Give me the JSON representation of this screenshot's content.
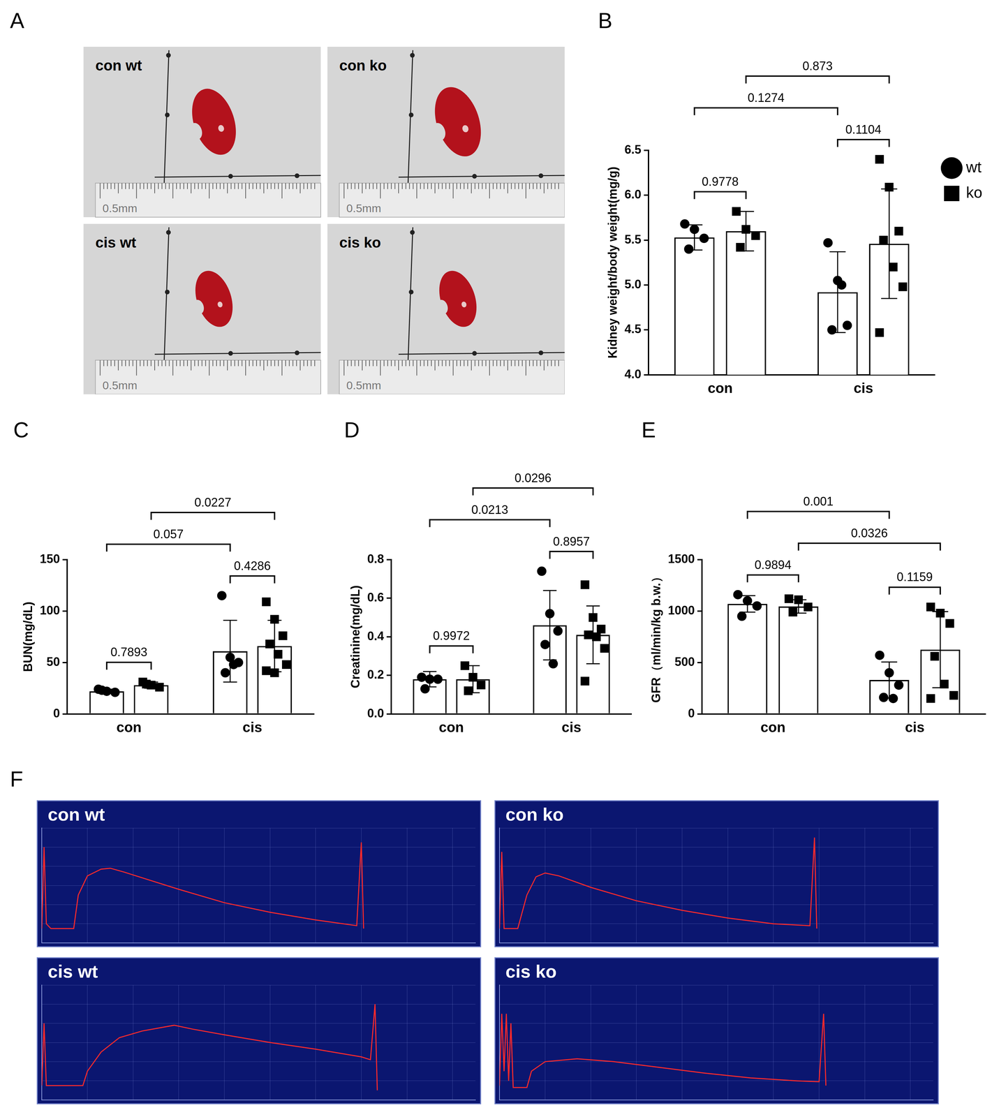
{
  "photos": {
    "panel": "A",
    "images": [
      {
        "label": "con wt"
      },
      {
        "label": "con ko"
      },
      {
        "label": "cis wt"
      },
      {
        "label": "cis ko"
      }
    ],
    "ruler_label": "0.5mm"
  },
  "chart_data": [
    {
      "panel": "B",
      "type": "bar",
      "y_label": "Kidney weight/body weight(mg/g)",
      "categories": [
        "con",
        "cis"
      ],
      "series": [
        {
          "name": "wt",
          "color": "#000000",
          "marker": "circle",
          "values": [
            5.53,
            4.92
          ],
          "error": [
            0.14,
            0.45
          ],
          "points": [
            [
              5.68,
              5.62,
              5.52,
              5.4
            ],
            [
              5.47,
              5.05,
              4.55,
              4.5,
              5.0
            ]
          ]
        },
        {
          "name": "ko",
          "color": "#000000",
          "marker": "square",
          "values": [
            5.6,
            5.46
          ],
          "error": [
            0.22,
            0.61
          ],
          "points": [
            [
              5.82,
              5.62,
              5.55,
              5.42
            ],
            [
              6.4,
              6.09,
              5.6,
              5.5,
              5.2,
              4.98,
              4.47
            ]
          ]
        }
      ],
      "ylim": [
        4,
        6.5
      ],
      "yticks": [
        {
          "value": 4,
          "label": "4.0"
        },
        {
          "value": 4.5,
          "label": "4.5"
        },
        {
          "value": 5,
          "label": "5.0"
        },
        {
          "value": 5.5,
          "label": "5.5"
        },
        {
          "value": 6,
          "label": "6.0"
        },
        {
          "value": 6.5,
          "label": "6.5"
        }
      ],
      "legend": "right",
      "comparisons": [
        {
          "between": [
            [
              0,
              0
            ],
            [
              0,
              1
            ]
          ],
          "label": "0.9778"
        },
        {
          "between": [
            [
              1,
              0
            ],
            [
              1,
              1
            ]
          ],
          "label": "0.1104"
        },
        {
          "between": [
            [
              0,
              0
            ],
            [
              1,
              0
            ]
          ],
          "label": "0.1274"
        },
        {
          "between": [
            [
              0,
              1
            ],
            [
              1,
              1
            ]
          ],
          "label": "0.873"
        }
      ]
    },
    {
      "panel": "C",
      "type": "bar",
      "y_label": "BUN(mg/dL)",
      "categories": [
        "con",
        "cis"
      ],
      "series": [
        {
          "name": "wt",
          "color": "#000000",
          "marker": "circle",
          "values": [
            22,
            61
          ],
          "error": [
            2,
            30
          ],
          "points": [
            [
              24,
              22,
              21,
              23
            ],
            [
              115,
              55,
              50,
              40,
              48
            ]
          ]
        },
        {
          "name": "ko",
          "color": "#000000",
          "marker": "square",
          "values": [
            28,
            66
          ],
          "error": [
            3,
            25
          ],
          "points": [
            [
              31,
              28,
              26,
              29
            ],
            [
              109,
              92,
              76,
              68,
              58,
              48,
              42,
              40
            ]
          ]
        }
      ],
      "ylim": [
        0,
        150
      ],
      "yticks": [
        0,
        50,
        100,
        150
      ],
      "comparisons": [
        {
          "between": [
            [
              0,
              0
            ],
            [
              0,
              1
            ]
          ],
          "label": "0.7893"
        },
        {
          "between": [
            [
              1,
              0
            ],
            [
              1,
              1
            ]
          ],
          "label": "0.4286"
        },
        {
          "between": [
            [
              0,
              0
            ],
            [
              1,
              0
            ]
          ],
          "label": "0.057"
        },
        {
          "between": [
            [
              0,
              1
            ],
            [
              1,
              1
            ]
          ],
          "label": "0.0227"
        }
      ]
    },
    {
      "panel": "D",
      "type": "bar",
      "y_label": "Creatinine(mg/dL)",
      "categories": [
        "con",
        "cis"
      ],
      "series": [
        {
          "name": "wt",
          "color": "#000000",
          "marker": "circle",
          "values": [
            0.18,
            0.46
          ],
          "error": [
            0.04,
            0.18
          ],
          "points": [
            [
              0.19,
              0.18,
              0.18,
              0.13
            ],
            [
              0.74,
              0.52,
              0.43,
              0.36,
              0.26
            ]
          ]
        },
        {
          "name": "ko",
          "color": "#000000",
          "marker": "square",
          "values": [
            0.18,
            0.41
          ],
          "error": [
            0.07,
            0.15
          ],
          "points": [
            [
              0.25,
              0.19,
              0.15,
              0.12
            ],
            [
              0.67,
              0.5,
              0.44,
              0.41,
              0.4,
              0.34,
              0.17
            ]
          ]
        }
      ],
      "ylim": [
        0,
        0.8
      ],
      "yticks": [
        {
          "value": 0,
          "label": "0.0"
        },
        {
          "value": 0.2,
          "label": "0.2"
        },
        {
          "value": 0.4,
          "label": "0.4"
        },
        {
          "value": 0.6,
          "label": "0.6"
        },
        {
          "value": 0.8,
          "label": "0.8"
        }
      ],
      "comparisons": [
        {
          "between": [
            [
              0,
              0
            ],
            [
              0,
              1
            ]
          ],
          "label": "0.9972"
        },
        {
          "between": [
            [
              1,
              0
            ],
            [
              1,
              1
            ]
          ],
          "label": "0.8957"
        },
        {
          "between": [
            [
              0,
              0
            ],
            [
              1,
              0
            ]
          ],
          "label": "0.0213"
        },
        {
          "between": [
            [
              0,
              1
            ],
            [
              1,
              1
            ]
          ],
          "label": "0.0296"
        }
      ]
    },
    {
      "panel": "E",
      "type": "bar",
      "y_label": "GFR（ml/min/kg b.w.）",
      "categories": [
        "con",
        "cis"
      ],
      "series": [
        {
          "name": "wt",
          "color": "#000000",
          "marker": "circle",
          "values": [
            1070,
            330
          ],
          "error": [
            80,
            175
          ],
          "points": [
            [
              1160,
              1100,
              1050,
              950
            ],
            [
              570,
              400,
              280,
              160,
              150
            ]
          ]
        },
        {
          "name": "ko",
          "color": "#000000",
          "marker": "square",
          "values": [
            1045,
            625
          ],
          "error": [
            65,
            370
          ],
          "points": [
            [
              1120,
              1110,
              1040,
              990
            ],
            [
              1040,
              980,
              880,
              560,
              290,
              180,
              150
            ]
          ]
        }
      ],
      "ylim": [
        0,
        1500
      ],
      "yticks": [
        0,
        500,
        1000,
        1500
      ],
      "comparisons": [
        {
          "between": [
            [
              0,
              0
            ],
            [
              0,
              1
            ]
          ],
          "label": "0.9894"
        },
        {
          "between": [
            [
              1,
              0
            ],
            [
              1,
              1
            ]
          ],
          "label": "0.1159"
        },
        {
          "between": [
            [
              0,
              1
            ],
            [
              1,
              1
            ]
          ],
          "label": "0.0326"
        },
        {
          "between": [
            [
              0,
              0
            ],
            [
              1,
              0
            ]
          ],
          "label": "0.001"
        }
      ]
    },
    {
      "panel": "F",
      "type": "line",
      "title": "con wt",
      "color": "#ff2a2a",
      "grid": true,
      "tick_labels": false,
      "x": [
        0,
        0.5,
        1,
        2,
        7,
        8,
        10,
        13,
        15,
        18,
        22,
        30,
        40,
        50,
        60,
        69,
        70,
        70.5
      ],
      "values": [
        150,
        1000,
        200,
        150,
        150,
        500,
        700,
        770,
        780,
        740,
        680,
        560,
        420,
        320,
        240,
        180,
        1050,
        150
      ],
      "xlim": [
        0,
        95
      ],
      "xticks": [
        0,
        10,
        20,
        30,
        40,
        50,
        60,
        70,
        80,
        90
      ],
      "ylim": [
        0,
        1200
      ],
      "yticks": [
        0,
        200,
        400,
        600,
        800,
        1000,
        1200
      ]
    },
    {
      "panel": "F",
      "type": "line",
      "title": "con ko",
      "color": "#ff2a2a",
      "grid": true,
      "tick_labels": false,
      "x": [
        0,
        0.5,
        1,
        4,
        6,
        8,
        10,
        13,
        20,
        30,
        40,
        50,
        60,
        68,
        69,
        69.5
      ],
      "values": [
        150,
        950,
        150,
        150,
        500,
        690,
        730,
        700,
        580,
        440,
        340,
        260,
        200,
        180,
        1100,
        150
      ],
      "xlim": [
        0,
        95
      ],
      "xticks": [
        0,
        10,
        20,
        30,
        40,
        50,
        60,
        70,
        80,
        90
      ],
      "ylim": [
        0,
        1200
      ],
      "yticks": [
        0,
        200,
        400,
        600,
        800,
        1000,
        1200
      ]
    },
    {
      "panel": "F",
      "type": "line",
      "title": "cis wt",
      "color": "#ff2a2a",
      "grid": true,
      "tick_labels": false,
      "x": [
        0,
        0.5,
        1,
        9,
        10,
        13,
        17,
        22,
        29,
        33,
        40,
        50,
        60,
        70,
        72,
        73,
        73.5
      ],
      "values": [
        150,
        800,
        150,
        150,
        300,
        500,
        650,
        720,
        780,
        740,
        680,
        600,
        530,
        450,
        420,
        1000,
        100
      ],
      "xlim": [
        0,
        95
      ],
      "xticks": [
        0,
        10,
        20,
        30,
        40,
        50,
        60,
        70,
        80,
        90
      ],
      "ylim": [
        0,
        1200
      ],
      "yticks": [
        0,
        200,
        400,
        600,
        800,
        1000,
        1200
      ]
    },
    {
      "panel": "F",
      "type": "line",
      "title": "cis ko",
      "color": "#ff2a2a",
      "grid": true,
      "tick_labels": false,
      "x": [
        0,
        0.5,
        1,
        1.5,
        2,
        2.5,
        3,
        6,
        7,
        10,
        17,
        25,
        35,
        45,
        55,
        65,
        70,
        71,
        71.5
      ],
      "values": [
        150,
        900,
        300,
        900,
        200,
        800,
        130,
        130,
        300,
        400,
        430,
        400,
        340,
        280,
        230,
        200,
        190,
        900,
        150
      ],
      "xlim": [
        0,
        95
      ],
      "xticks": [
        0,
        10,
        20,
        30,
        40,
        50,
        60,
        70,
        80,
        90
      ],
      "ylim": [
        0,
        1200
      ],
      "yticks": [
        0,
        200,
        400,
        600,
        800,
        1000,
        1200
      ]
    }
  ]
}
